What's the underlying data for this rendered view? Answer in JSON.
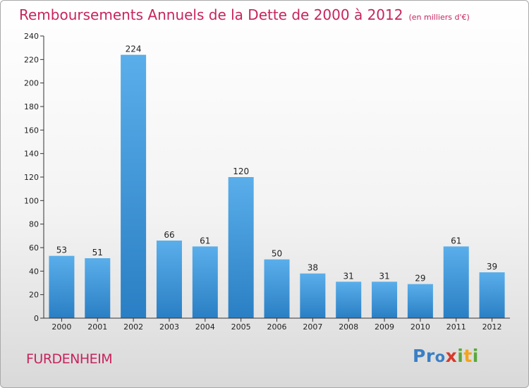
{
  "title": "Remboursements Annuels de la Dette de 2000 à 2012",
  "unit": "(en milliers d'€)",
  "city": "FURDENHEIM",
  "logo": [
    "P",
    "r",
    "o",
    "x",
    "i",
    "t",
    "i"
  ],
  "logo_colors": [
    "#3a7fc4",
    "#3a7fc4",
    "#3a7fc4",
    "#d8392b",
    "#59a83a",
    "#f2a51f",
    "#59a83a"
  ],
  "chart_data": {
    "type": "bar",
    "categories": [
      "2000",
      "2001",
      "2002",
      "2003",
      "2004",
      "2005",
      "2006",
      "2007",
      "2008",
      "2009",
      "2010",
      "2011",
      "2012"
    ],
    "values": [
      53,
      51,
      224,
      66,
      61,
      120,
      50,
      38,
      31,
      31,
      29,
      61,
      39
    ],
    "title": "Remboursements Annuels de la Dette de 2000 à 2012",
    "ylim": [
      0,
      240
    ],
    "yticks": [
      0,
      20,
      40,
      60,
      80,
      100,
      120,
      140,
      160,
      180,
      200,
      220,
      240
    ],
    "grid": false,
    "bar_color": "#4a9ee0",
    "title_color": "#c7245e"
  }
}
